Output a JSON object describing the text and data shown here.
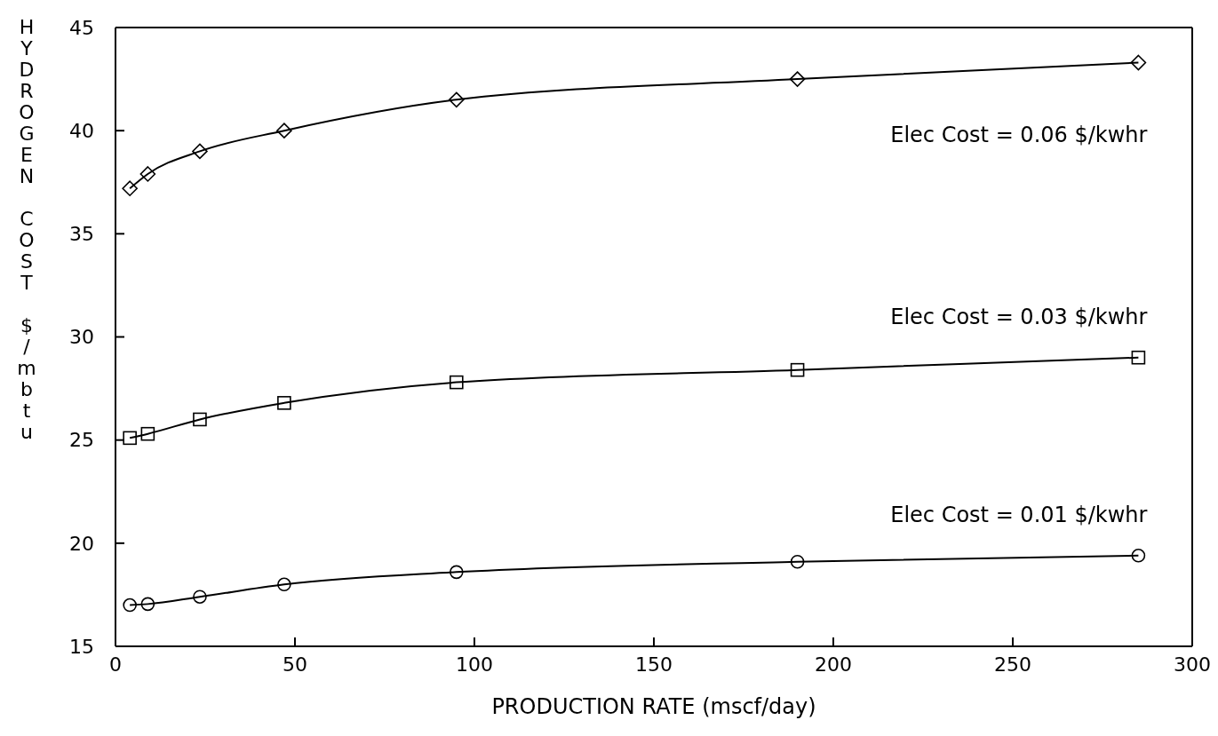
{
  "chart_data": {
    "type": "line",
    "xlabel": "PRODUCTION RATE  (mscf/day)",
    "ylabel": "HYDROGEN COST $/mbtu",
    "x": [
      4,
      9,
      23.5,
      47,
      95,
      190,
      285
    ],
    "series": [
      {
        "name": "Elec Cost = 0.06 $/kwhr",
        "color": "#000000",
        "marker": "diamond",
        "values": [
          37.2,
          37.9,
          39.0,
          40.0,
          41.5,
          42.5,
          43.3
        ]
      },
      {
        "name": "Elec Cost = 0.03 $/kwhr",
        "color": "#000000",
        "marker": "square",
        "values": [
          25.1,
          25.3,
          26.0,
          26.8,
          27.8,
          28.4,
          29.0
        ]
      },
      {
        "name": "Elec Cost = 0.01 $/kwhr",
        "color": "#000000",
        "marker": "circle",
        "values": [
          17.0,
          17.05,
          17.4,
          18.0,
          18.6,
          19.1,
          19.4
        ]
      }
    ],
    "xlim": [
      0,
      300
    ],
    "xticks": [
      0,
      50,
      100,
      150,
      200,
      250,
      300
    ],
    "ylim": [
      15,
      45
    ],
    "yticks": [
      15,
      20,
      25,
      30,
      35,
      40,
      45
    ],
    "grid": false,
    "line_style": "solid"
  }
}
